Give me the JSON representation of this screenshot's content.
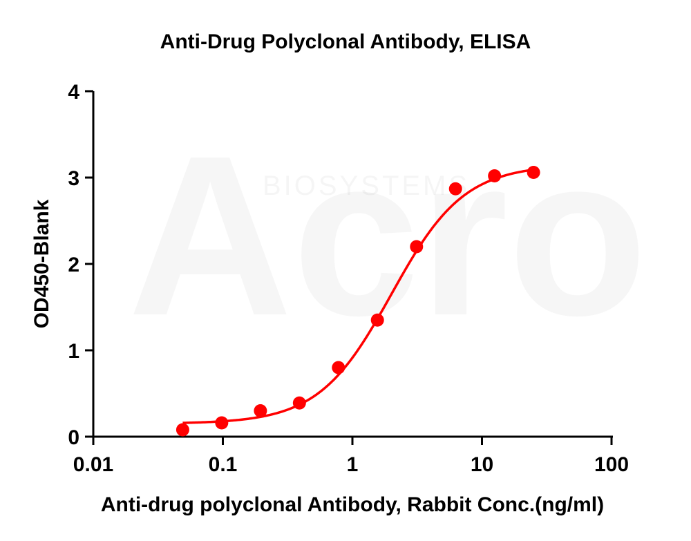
{
  "watermark": {
    "main": "Acro",
    "sub": "BIOSYSTEMS"
  },
  "chart_data": {
    "type": "scatter",
    "title": "Anti-Drug Polyclonal Antibody, ELISA",
    "xlabel": "Anti-drug polyclonal Antibody, Rabbit Conc.(ng/ml)",
    "ylabel": "OD450-Blank",
    "xscale": "log",
    "xlim": [
      0.01,
      100
    ],
    "ylim": [
      0,
      4
    ],
    "xticks": [
      0.01,
      0.1,
      1,
      10,
      100
    ],
    "xtick_labels": [
      "0.01",
      "0.1",
      "1",
      "10",
      "100"
    ],
    "yticks": [
      0,
      1,
      2,
      3,
      4
    ],
    "ytick_labels": [
      "0",
      "1",
      "2",
      "3",
      "4"
    ],
    "grid": false,
    "color": "#ff0000",
    "series": [
      {
        "x": [
          0.049,
          0.098,
          0.195,
          0.39,
          0.78,
          1.56,
          3.125,
          6.25,
          12.5,
          25
        ],
        "y": [
          0.08,
          0.16,
          0.3,
          0.39,
          0.8,
          1.35,
          2.2,
          2.87,
          3.02,
          3.06
        ]
      }
    ],
    "fit_curve": {
      "type": "4PL",
      "bottom": 0.15,
      "top": 3.15,
      "ec50": 2.0,
      "hill": 1.55,
      "x_range": [
        0.049,
        25
      ]
    }
  }
}
